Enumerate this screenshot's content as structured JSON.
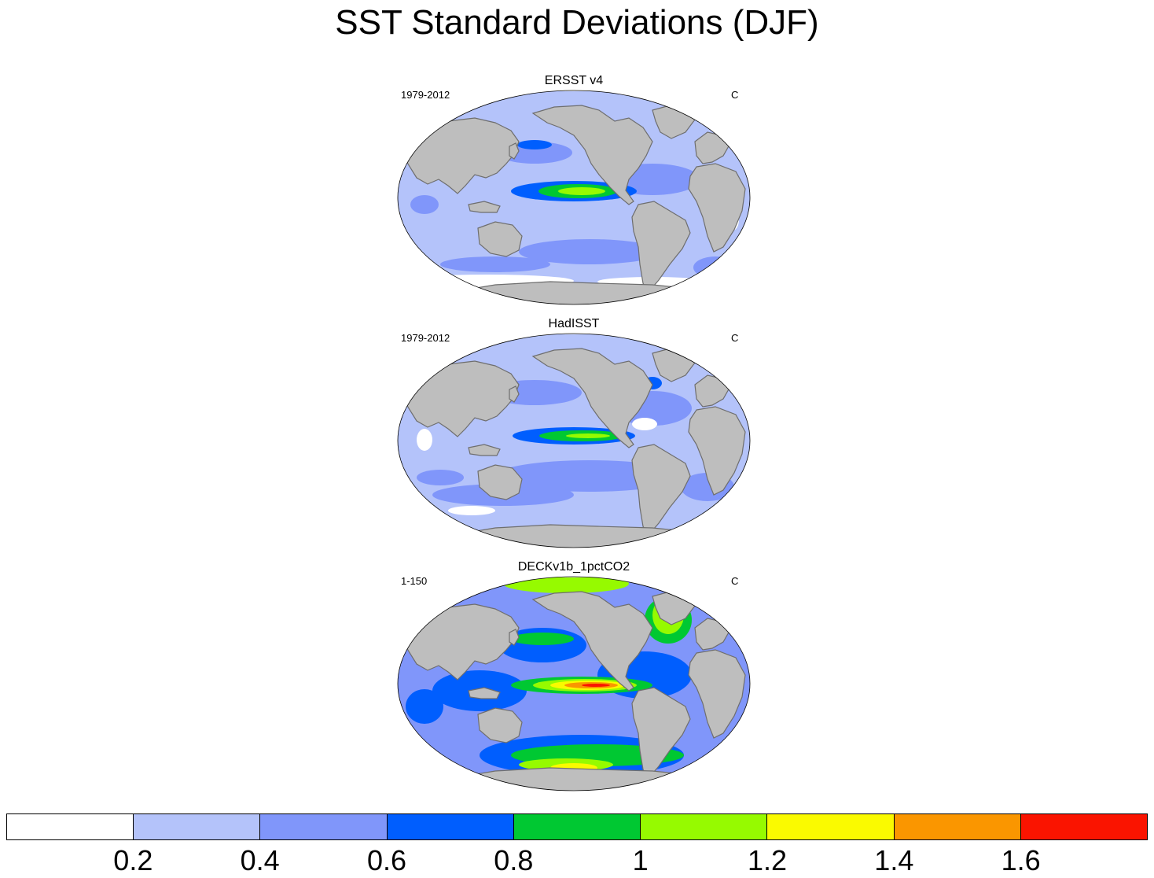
{
  "title": "SST Standard Deviations (DJF)",
  "panels": [
    {
      "title": "ERSST v4",
      "left_label": "1979-2012",
      "right_label": "C",
      "variant": "ersst"
    },
    {
      "title": "HadISST",
      "left_label": "1979-2012",
      "right_label": "C",
      "variant": "hadisst"
    },
    {
      "title": "DECKv1b_1pctCO2",
      "left_label": "1-150",
      "right_label": "C",
      "variant": "deck"
    }
  ],
  "colorbar": {
    "colors": [
      "#ffffff",
      "#b4c3fa",
      "#8096fa",
      "#005efe",
      "#00c832",
      "#96fa00",
      "#fafa00",
      "#fa9600",
      "#fa1400"
    ],
    "labels": [
      "0.2",
      "0.4",
      "0.6",
      "0.8",
      "1",
      "1.2",
      "1.4",
      "1.6"
    ]
  },
  "colors": {
    "land": "#bebebe",
    "coast": "#6e6e6e"
  }
}
